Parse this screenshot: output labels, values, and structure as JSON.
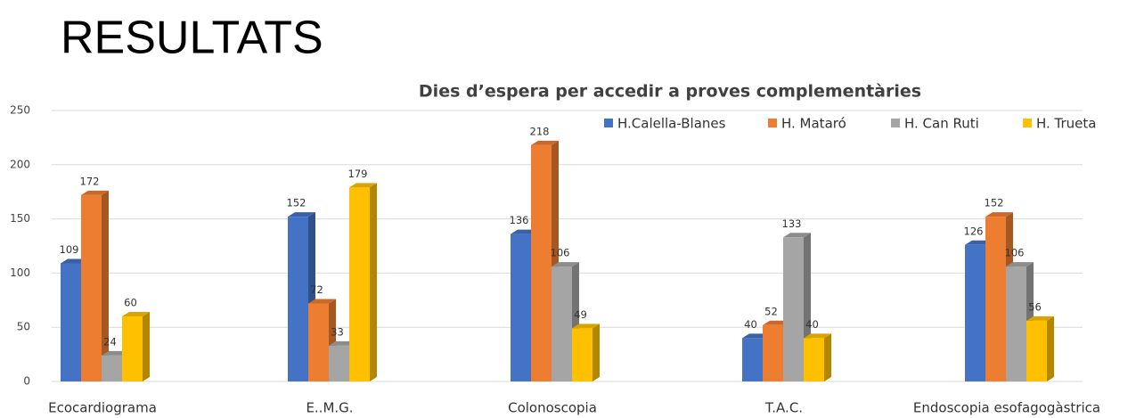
{
  "header": {
    "title": "RESULTATS"
  },
  "chart_data": {
    "type": "bar3d",
    "title": "Dies d’espera per accedir a proves complementàries",
    "categories": [
      "Ecocardiograma",
      "E..M.G.",
      "Colonoscopia",
      "T.A.C.",
      "Endoscopia esofagogàstrica"
    ],
    "series": [
      {
        "name": "H.Calella-Blanes",
        "color": "#4472c4",
        "values": [
          109,
          152,
          136,
          40,
          126
        ]
      },
      {
        "name": "H. Mataró",
        "color": "#ed7d31",
        "values": [
          172,
          72,
          218,
          52,
          152
        ]
      },
      {
        "name": "H. Can Ruti",
        "color": "#a5a5a5",
        "values": [
          24,
          33,
          106,
          133,
          106
        ]
      },
      {
        "name": "H. Trueta",
        "color": "#ffc000",
        "values": [
          60,
          179,
          49,
          40,
          56
        ]
      }
    ],
    "ylim": [
      0,
      250
    ],
    "yticks": [
      0,
      50,
      100,
      150,
      200,
      250
    ],
    "grid": true,
    "legend": "top-right"
  }
}
